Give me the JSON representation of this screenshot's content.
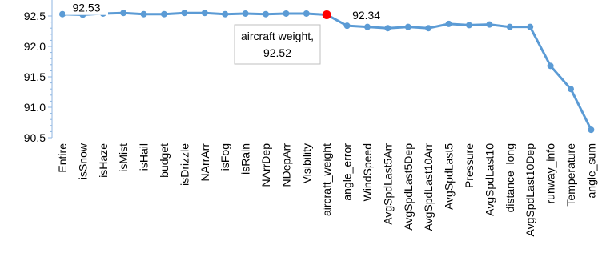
{
  "chart_data": {
    "type": "line",
    "title": "",
    "xlabel": "",
    "ylabel": "",
    "ylim": [
      90.5,
      92.5
    ],
    "yticks": [
      90.5,
      91.0,
      91.5,
      92.0,
      92.5
    ],
    "ytick_labels": [
      "90.5",
      "91.0",
      "91.5",
      "92.0",
      "92.5"
    ],
    "grid": false,
    "legend": "none",
    "categories": [
      "Entire",
      "isSnow",
      "isHaze",
      "isMist",
      "isHail",
      "budget",
      "isDrizzle",
      "NArrArr",
      "isFog",
      "isRain",
      "NArrDep",
      "NDepArr",
      "Visibility",
      "aircraft_weight",
      "angle_error",
      "WindSpeed",
      "AvgSpdLast5Arr",
      "AvgSpdLast5Dep",
      "AvgSpdLast10Arr",
      "AvgSpdLast5",
      "Pressure",
      "AvgSpdLast10",
      "distance_long",
      "AvgSpdLast10Dep",
      "runway_info",
      "Temperature",
      "angle_sum"
    ],
    "series": [
      {
        "values": [
          92.53,
          92.52,
          92.54,
          92.55,
          92.53,
          92.53,
          92.55,
          92.55,
          92.53,
          92.54,
          92.53,
          92.54,
          92.54,
          92.52,
          92.34,
          92.32,
          92.3,
          92.32,
          92.3,
          92.37,
          92.35,
          92.36,
          92.32,
          92.32,
          91.68,
          91.3,
          90.63
        ],
        "color": "#5b9bd5"
      }
    ],
    "highlight": {
      "index": 13,
      "color": "#ff0000"
    },
    "data_labels": [
      {
        "index": 0,
        "text": "92.53"
      },
      {
        "index": 14,
        "text": "92.34"
      }
    ],
    "callout": {
      "index": 13,
      "lines": [
        "aircraft weight,",
        "92.52"
      ]
    }
  }
}
